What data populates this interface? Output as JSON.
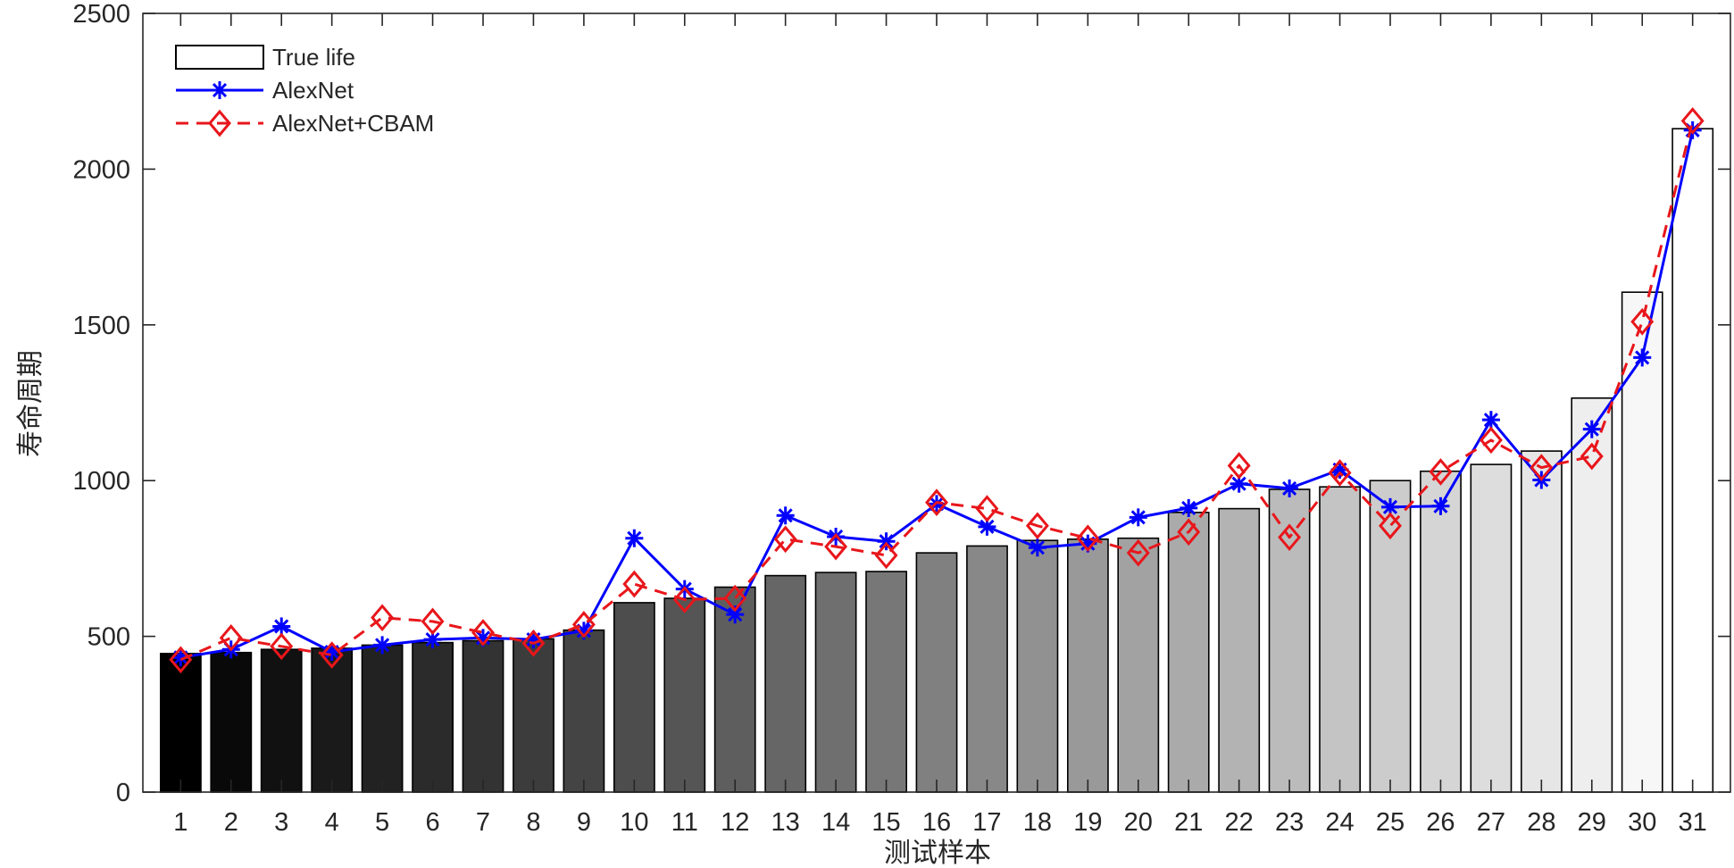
{
  "chart_data": {
    "type": "bar",
    "xlabel": "测试样本",
    "ylabel": "寿命周期",
    "ylim": [
      0,
      2500
    ],
    "yticks": [
      0,
      500,
      1000,
      1500,
      2000,
      2500
    ],
    "categories": [
      "1",
      "2",
      "3",
      "4",
      "5",
      "6",
      "7",
      "8",
      "9",
      "10",
      "11",
      "12",
      "13",
      "14",
      "15",
      "16",
      "17",
      "18",
      "19",
      "20",
      "21",
      "22",
      "23",
      "24",
      "25",
      "26",
      "27",
      "28",
      "29",
      "30",
      "31"
    ],
    "bars": {
      "name": "True life",
      "values": [
        445,
        448,
        458,
        462,
        472,
        480,
        486,
        492,
        520,
        608,
        622,
        658,
        695,
        705,
        708,
        768,
        790,
        808,
        812,
        815,
        898,
        910,
        972,
        980,
        1000,
        1030,
        1052,
        1095,
        1265,
        1605,
        2130
      ]
    },
    "series": [
      {
        "name": "AlexNet",
        "color": "#0000ff",
        "line": "solid",
        "marker": "asterisk",
        "values": [
          432,
          458,
          532,
          450,
          472,
          490,
          495,
          490,
          518,
          815,
          652,
          570,
          888,
          820,
          805,
          925,
          852,
          785,
          798,
          882,
          912,
          990,
          975,
          1035,
          915,
          918,
          1195,
          1002,
          1165,
          1395,
          2125
        ]
      },
      {
        "name": "AlexNet+CBAM",
        "color": "#e8161b",
        "line": "dashed",
        "marker": "diamond",
        "values": [
          425,
          495,
          468,
          440,
          560,
          548,
          512,
          478,
          538,
          668,
          618,
          622,
          812,
          788,
          760,
          930,
          910,
          855,
          815,
          768,
          835,
          1048,
          818,
          1025,
          855,
          1028,
          1130,
          1042,
          1078,
          1510,
          2155
        ]
      }
    ],
    "legend": {
      "position": "top-left"
    },
    "grid": false
  }
}
